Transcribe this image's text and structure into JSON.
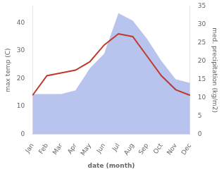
{
  "chart_data": {
    "type": "line",
    "categories": [
      "Jan",
      "Feb",
      "Mar",
      "Apr",
      "May",
      "Jun",
      "Jul",
      "Aug",
      "Sep",
      "Oct",
      "Nov",
      "Dec"
    ],
    "series": [
      {
        "type": "area",
        "axis": "y2",
        "color": "#b8c4ee",
        "values": [
          11,
          11,
          11,
          12,
          18,
          22,
          33,
          31,
          26,
          20,
          15,
          14
        ]
      },
      {
        "type": "line",
        "color": "#c0392b",
        "values": [
          14,
          21,
          22,
          23,
          26,
          32,
          36,
          35,
          28,
          21,
          16,
          14
        ]
      }
    ],
    "xlabel": "date (month)",
    "ylabel": "max temp (C)",
    "y2label": "med. precipitation (kg/m2)",
    "ylim": [
      0,
      46
    ],
    "yticks": [
      0,
      10,
      20,
      30,
      40
    ],
    "y2lim": [
      0,
      35
    ],
    "y2ticks": [
      0,
      5,
      10,
      15,
      20,
      25,
      30,
      35
    ],
    "grid": false
  }
}
